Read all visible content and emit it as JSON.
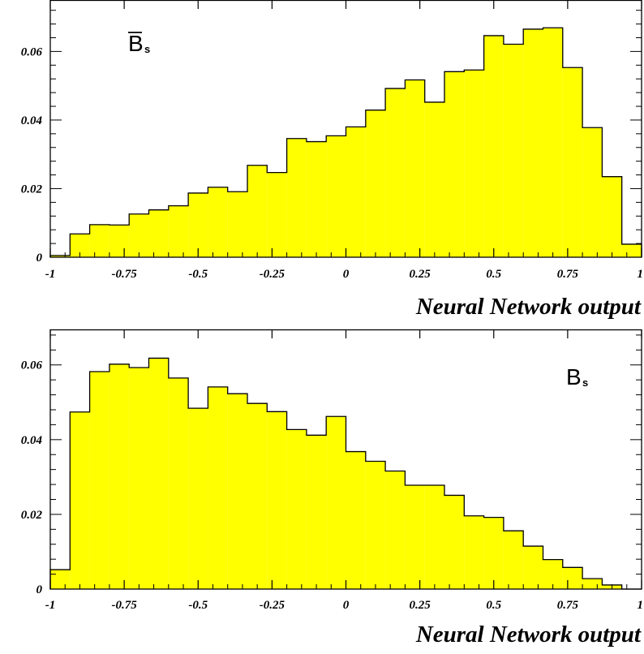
{
  "chart_data": [
    {
      "type": "bar",
      "label": "B",
      "label_overbar": true,
      "label_subscript": "s",
      "legend_position": "top-left",
      "xlabel": "Neural Network output",
      "xlim": [
        -1,
        1
      ],
      "ylim": [
        0,
        0.075
      ],
      "x_ticks": [
        -1,
        -0.75,
        -0.5,
        -0.25,
        0,
        0.25,
        0.5,
        0.75,
        1
      ],
      "x_tick_labels": [
        "-1",
        "-0.75",
        "-0.5",
        "-0.25",
        "0",
        "0.25",
        "0.5",
        "0.75",
        "1"
      ],
      "y_ticks": [
        0,
        0.02,
        0.04,
        0.06
      ],
      "y_tick_labels": [
        "0",
        "0.02",
        "0.04",
        "0.06"
      ],
      "bin_edges": [
        -1,
        -0.9333,
        -0.8667,
        -0.8,
        -0.7333,
        -0.6667,
        -0.6,
        -0.5333,
        -0.4667,
        -0.4,
        -0.3333,
        -0.2667,
        -0.2,
        -0.1333,
        -0.0667,
        0,
        0.0667,
        0.1333,
        0.2,
        0.2667,
        0.3333,
        0.4,
        0.4667,
        0.5333,
        0.6,
        0.6667,
        0.7333,
        0.8,
        0.8667,
        0.9333,
        1
      ],
      "values": [
        0.0005,
        0.0068,
        0.0095,
        0.0094,
        0.0126,
        0.0138,
        0.015,
        0.0187,
        0.0204,
        0.0191,
        0.0268,
        0.0247,
        0.0346,
        0.0337,
        0.0354,
        0.038,
        0.0429,
        0.0492,
        0.0517,
        0.0452,
        0.0541,
        0.0546,
        0.0646,
        0.0621,
        0.0665,
        0.0669,
        0.0553,
        0.0378,
        0.0235,
        0.0038
      ],
      "fill_color": "#ffff00",
      "line_color": "#000000"
    },
    {
      "type": "bar",
      "label": "B",
      "label_overbar": false,
      "label_subscript": "s",
      "legend_position": "top-right",
      "xlabel": "Neural Network output",
      "xlim": [
        -1,
        1
      ],
      "ylim": [
        0,
        0.0695
      ],
      "x_ticks": [
        -1,
        -0.75,
        -0.5,
        -0.25,
        0,
        0.25,
        0.5,
        0.75,
        1
      ],
      "x_tick_labels": [
        "-1",
        "-0.75",
        "-0.5",
        "-0.25",
        "0",
        "0.25",
        "0.5",
        "0.75",
        "1"
      ],
      "y_ticks": [
        0,
        0.02,
        0.04,
        0.06
      ],
      "y_tick_labels": [
        "0",
        "0.02",
        "0.04",
        "0.06"
      ],
      "bin_edges": [
        -1,
        -0.9333,
        -0.8667,
        -0.8,
        -0.7333,
        -0.6667,
        -0.6,
        -0.5333,
        -0.4667,
        -0.4,
        -0.3333,
        -0.2667,
        -0.2,
        -0.1333,
        -0.0667,
        0,
        0.0667,
        0.1333,
        0.2,
        0.2667,
        0.3333,
        0.4,
        0.4667,
        0.5333,
        0.6,
        0.6667,
        0.7333,
        0.8,
        0.8667,
        0.9333,
        1
      ],
      "values": [
        0.0052,
        0.0474,
        0.0582,
        0.0602,
        0.0593,
        0.0618,
        0.0565,
        0.0484,
        0.0541,
        0.0523,
        0.0497,
        0.0475,
        0.0427,
        0.0412,
        0.0462,
        0.0368,
        0.0342,
        0.0316,
        0.0278,
        0.0278,
        0.0251,
        0.0196,
        0.0192,
        0.0156,
        0.0115,
        0.0079,
        0.0058,
        0.0028,
        0.0011,
        0.0
      ],
      "fill_color": "#ffff00",
      "line_color": "#000000"
    }
  ]
}
